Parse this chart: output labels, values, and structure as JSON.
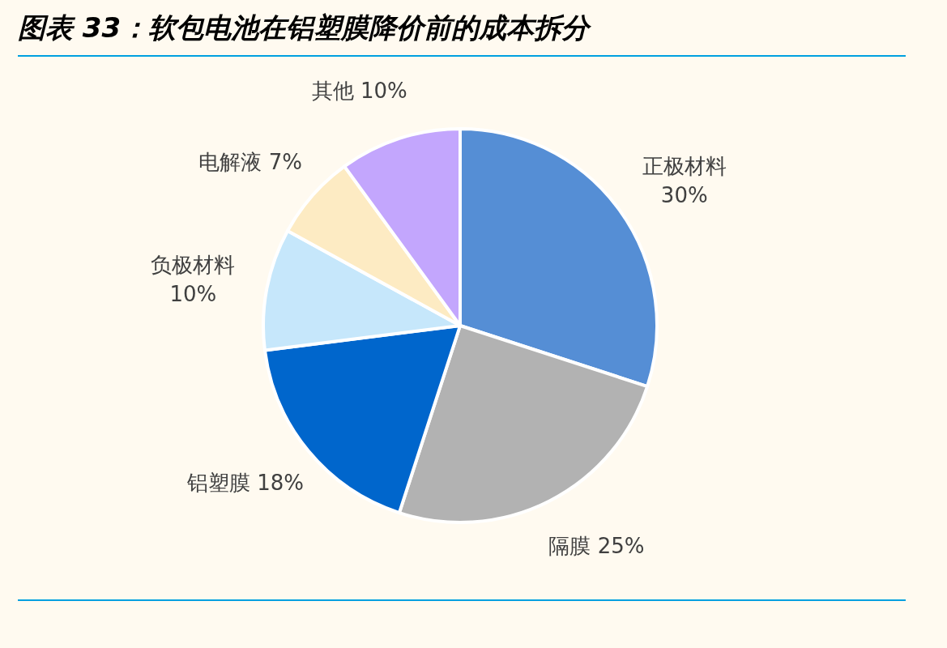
{
  "chart_data": {
    "type": "pie",
    "title": "图表 33：软包电池在铝塑膜降价前的成本拆分",
    "categories": [
      "正极材料",
      "隔膜",
      "铝塑膜",
      "负极材料",
      "电解液",
      "其他"
    ],
    "values": [
      30,
      25,
      18,
      10,
      7,
      10
    ],
    "value_labels": [
      "30%",
      "25%",
      "18%",
      "10%",
      "7%",
      "10%"
    ],
    "colors": [
      "#558ed5",
      "#b2b2b2",
      "#0066cc",
      "#c6e7fb",
      "#fdebc3",
      "#c3a6fd"
    ],
    "legend": false
  }
}
